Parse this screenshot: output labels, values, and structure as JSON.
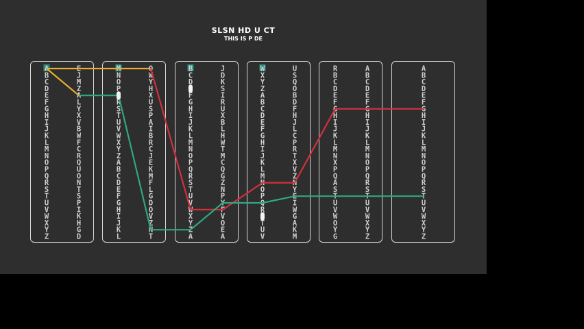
{
  "title": "SLSN HD U CT",
  "subtitle": "THIS IS P DE",
  "columns": [
    {
      "name": "plugboard-in",
      "letters": "ABCDEFGHIJKLMNOPQRSTUVWXYZ"
    },
    {
      "name": "plugboard-out",
      "letters": "EJMZALYXVBWFCRQUONTSPIKHGD"
    },
    {
      "name": "rotor1-in",
      "letters": "MNOPQRSTUVWXYZABCDEFGHIJKL"
    },
    {
      "name": "rotor1-out",
      "letters": "QWYHXUSPAIBRCJEKMFLGDOVZNT"
    },
    {
      "name": "rotor2-in",
      "letters": "BCDEFGHIJKLMNOPQRSTUVWXYZA"
    },
    {
      "name": "rotor2-out",
      "letters": "JDKSIRUXBLHWTMCQGZNPYFVOEA"
    },
    {
      "name": "rotor3-in",
      "letters": "WXYZABCDEFGHIJKLMNOPQRSTUV"
    },
    {
      "name": "rotor3-out",
      "letters": "USQOBDFHJLCPRTXVZNYEIWGAKM"
    },
    {
      "name": "reflector-in",
      "letters": "RBCDEFGHIJKLMNXPQASTUVWOYG"
    },
    {
      "name": "reflector-out",
      "letters": "ABCDEFGHIJKLMNOPQRSTUVWXYZ"
    },
    {
      "name": "keyboard",
      "letters": "ABCDEFGHIJKLMNOPQRSTUVWXYZ"
    }
  ],
  "highlights": [
    {
      "col": 0,
      "row": 0,
      "color": "#2a8f80"
    },
    {
      "col": 2,
      "row": 0,
      "color": "#2a8f80"
    },
    {
      "col": 4,
      "row": 0,
      "color": "#2a8f80"
    },
    {
      "col": 6,
      "row": 0,
      "color": "#2a8f80"
    }
  ],
  "notches": [
    {
      "col": 2,
      "row": 4
    },
    {
      "col": 4,
      "row": 3
    },
    {
      "col": 6,
      "row": 22
    }
  ],
  "wires": [
    {
      "name": "yellow-wire",
      "color": "#e8b030",
      "points": [
        [
          0,
          0
        ],
        [
          1,
          0
        ],
        [
          2,
          0
        ],
        [
          3,
          0
        ]
      ],
      "extra": [
        [
          0,
          0
        ],
        [
          1,
          4
        ]
      ]
    },
    {
      "name": "red-wire",
      "color": "#d2303c",
      "points": [
        [
          3,
          0
        ],
        [
          4,
          21
        ],
        [
          5,
          21
        ],
        [
          6,
          17
        ],
        [
          7,
          17
        ],
        [
          8,
          6
        ],
        [
          10,
          6
        ]
      ]
    },
    {
      "name": "green-wire",
      "color": "#2fa882",
      "points": [
        [
          1,
          4
        ],
        [
          2,
          4
        ],
        [
          3,
          24
        ],
        [
          4,
          24
        ],
        [
          5,
          20
        ],
        [
          6,
          20
        ],
        [
          7,
          19
        ],
        [
          10,
          19
        ]
      ]
    }
  ]
}
